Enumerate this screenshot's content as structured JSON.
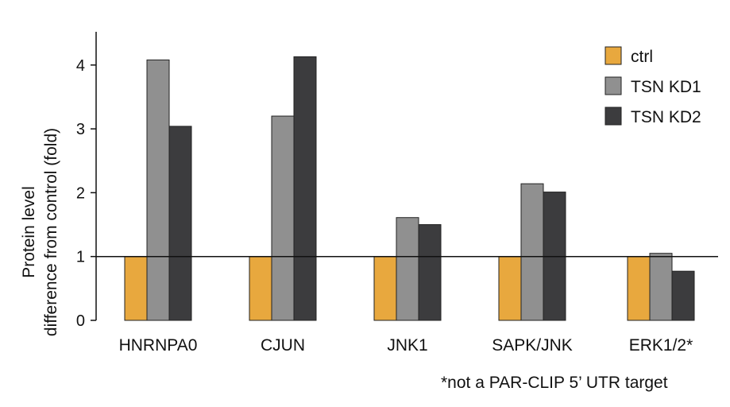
{
  "chart_data": {
    "type": "bar",
    "title": "",
    "xlabel": "",
    "ylabel": [
      "Protein level",
      "difference from control (fold)"
    ],
    "categories": [
      "HNRNPA0",
      "CJUN",
      "JNK1",
      "SAPK/JNK",
      "ERK1/2*"
    ],
    "series": [
      {
        "name": "ctrl",
        "color": "#E8A83E",
        "values": [
          1,
          1,
          1,
          1,
          1
        ]
      },
      {
        "name": "TSN KD1",
        "color": "#909090",
        "values": [
          4.08,
          3.2,
          1.61,
          2.14,
          1.05
        ]
      },
      {
        "name": "TSN KD2",
        "color": "#3C3C3E",
        "values": [
          3.04,
          4.13,
          1.5,
          2.01,
          0.77
        ]
      }
    ],
    "ylim": [
      0,
      4.5
    ],
    "yticks": [
      0,
      1,
      2,
      3,
      4
    ],
    "reference_line": 1,
    "legend_position": "top-right",
    "grid": false,
    "footnote": "*not a PAR-CLIP 5’ UTR target"
  }
}
